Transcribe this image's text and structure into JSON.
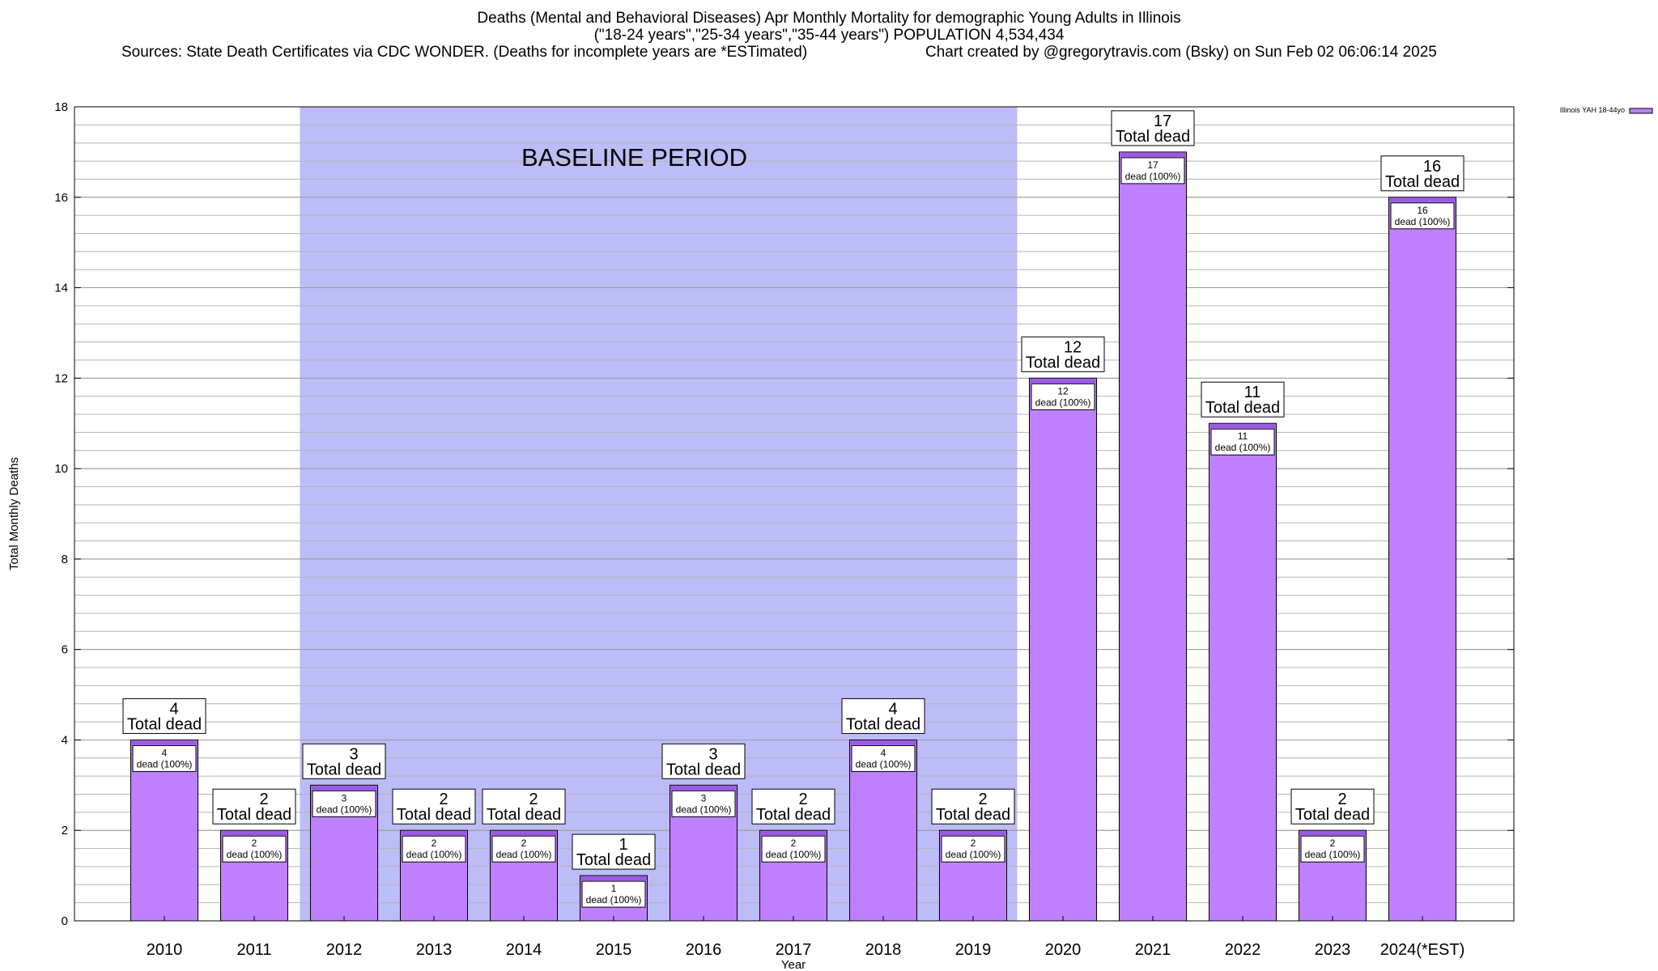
{
  "chart_data": {
    "type": "bar",
    "title_lines": [
      "Deaths (Mental and Behavioral Diseases) Apr Monthly Mortality for demographic Young Adults in Illinois",
      "(\"18-24 years\",\"25-34 years\",\"35-44 years\") POPULATION 4,534,434"
    ],
    "sources": "Sources: State Death Certificates via CDC WONDER. (Deaths for incomplete years are *ESTimated)",
    "credit": "Chart created by @gregorytravis.com (Bsky) on Sun Feb 02 06:06:14 2025",
    "xlabel": "Year",
    "ylabel": "Total Monthly Deaths",
    "ylim": [
      0,
      18
    ],
    "y_ticks": [
      0,
      2,
      4,
      6,
      8,
      10,
      12,
      14,
      16,
      18
    ],
    "y_minor_step": 0.4,
    "categories": [
      "2010",
      "2011",
      "2012",
      "2013",
      "2014",
      "2015",
      "2016",
      "2017",
      "2018",
      "2019",
      "2020",
      "2021",
      "2022",
      "2023",
      "2024(*EST)"
    ],
    "series": [
      {
        "name": "Illinois YAH 18-44yo",
        "values": [
          4,
          2,
          3,
          2,
          2,
          1,
          3,
          2,
          4,
          2,
          12,
          17,
          11,
          2,
          16
        ]
      }
    ],
    "total_label_suffix": "Total dead",
    "inner_label_suffix": "dead (100%)",
    "baseline": {
      "label": "BASELINE PERIOD",
      "from": "2012",
      "to": "2019",
      "color": "#bcbcf7"
    },
    "bar_color": "#bf80ff",
    "bar_top_color": "#9b59e6",
    "legend_position": "top-right",
    "grid": true
  }
}
